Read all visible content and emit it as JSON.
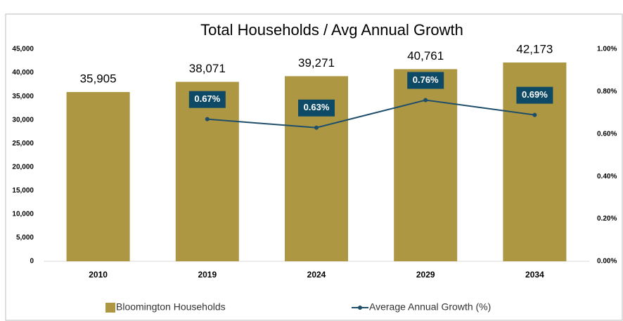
{
  "chart_data": {
    "type": "bar",
    "title": "Total Households / Avg Annual Growth",
    "categories": [
      "2010",
      "2019",
      "2024",
      "2029",
      "2034"
    ],
    "series": [
      {
        "name": "Bloomington Households",
        "type": "bar",
        "color": "#ad9743",
        "values": [
          35905,
          38071,
          39271,
          40761,
          42173
        ],
        "value_labels": [
          "35,905",
          "38,071",
          "39,271",
          "40,761",
          "42,173"
        ]
      },
      {
        "name": "Average Annual Growth (%)",
        "type": "line",
        "axis": "y2",
        "color": "#1f4e6b",
        "values": [
          null,
          0.67,
          0.63,
          0.76,
          0.69
        ],
        "value_labels": [
          null,
          "0.67%",
          "0.63%",
          "0.76%",
          "0.69%"
        ]
      }
    ],
    "ylim": [
      0,
      45000
    ],
    "yticks": [
      0,
      {
        "value": 5000,
        "label": "5,000"
      },
      {
        "value": 10000,
        "label": "10,000"
      },
      {
        "value": 15000,
        "label": "15,000"
      },
      {
        "value": 20000,
        "label": "20,000"
      },
      {
        "value": 25000,
        "label": "25,000"
      },
      {
        "value": 30000,
        "label": "30,000"
      },
      {
        "value": 35000,
        "label": "35,000"
      },
      {
        "value": 40000,
        "label": "40,000"
      },
      {
        "value": 45000,
        "label": "45,000"
      }
    ],
    "y2lim": [
      0,
      1
    ],
    "y2ticks": [
      {
        "value": 0,
        "label": "0.00%"
      },
      {
        "value": 0.2,
        "label": "0.20%"
      },
      {
        "value": 0.4,
        "label": "0.40%"
      },
      {
        "value": 0.6,
        "label": "0.60%"
      },
      {
        "value": 0.8,
        "label": "0.80%"
      },
      {
        "value": 1,
        "label": "1.00%"
      }
    ],
    "grid": false,
    "legend": "bottom"
  }
}
